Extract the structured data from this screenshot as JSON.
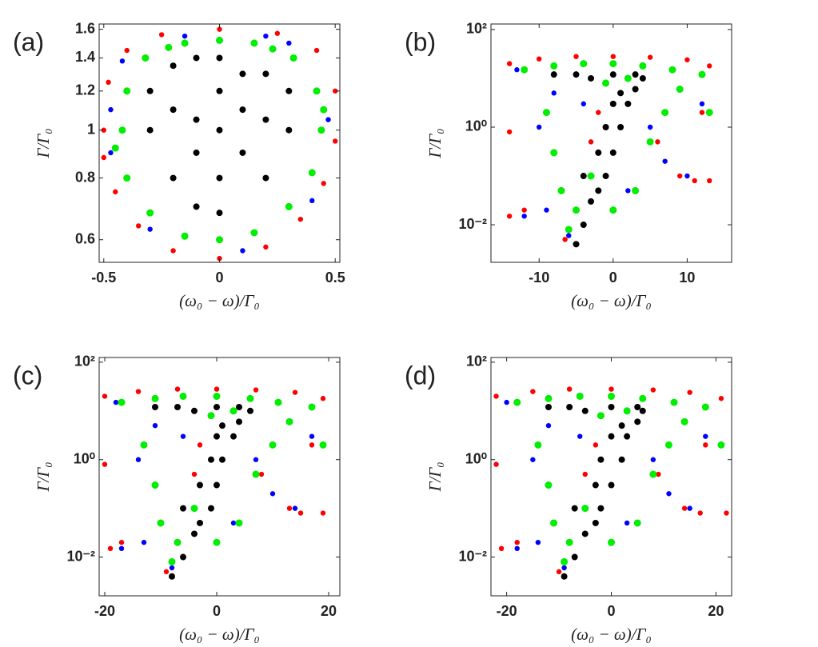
{
  "chart_data": [
    {
      "type": "scatter",
      "label": "(a)",
      "xlabel": "(ω₀ − ω)/Γ₀",
      "ylabel": "Γ/Γ₀",
      "ylog": true,
      "xlim": [
        -0.52,
        0.52
      ],
      "ylim": [
        0.54,
        1.64
      ],
      "xticks": [
        -0.5,
        0,
        0.5
      ],
      "yticks": [
        0.6,
        0.8,
        1,
        1.2,
        1.4,
        1.6
      ],
      "series": [
        {
          "color": "#ff0000",
          "x": [
            -0.5,
            -0.48,
            -0.4,
            -0.25,
            0,
            0.25,
            0.42,
            0.5,
            0.5,
            0.45,
            0.35,
            0.2,
            0,
            -0.2,
            -0.35,
            -0.45,
            -0.5
          ],
          "values": [
            1.0,
            1.25,
            1.45,
            1.56,
            1.6,
            1.57,
            1.45,
            1.2,
            0.95,
            0.78,
            0.66,
            0.58,
            0.55,
            0.57,
            0.64,
            0.75,
            0.88
          ]
        },
        {
          "color": "#0000ff",
          "x": [
            -0.47,
            -0.42,
            0.3,
            0.47,
            0.4,
            0.1,
            -0.3,
            -0.47,
            0.2,
            -0.15
          ],
          "values": [
            1.1,
            1.38,
            1.5,
            1.05,
            0.72,
            0.57,
            0.63,
            0.9,
            1.55,
            1.55
          ]
        },
        {
          "color": "#00ee00",
          "x": [
            -0.42,
            -0.4,
            -0.32,
            -0.15,
            0,
            0.15,
            0.32,
            0.42,
            0.44,
            0.4,
            0.3,
            0.15,
            0,
            -0.15,
            -0.3,
            -0.4,
            -0.45,
            0.45,
            -0.22,
            0.23
          ],
          "values": [
            1.0,
            1.2,
            1.4,
            1.5,
            1.52,
            1.5,
            1.4,
            1.2,
            1.0,
            0.82,
            0.7,
            0.62,
            0.6,
            0.61,
            0.68,
            0.8,
            0.92,
            1.1,
            1.47,
            1.46
          ]
        },
        {
          "color": "#000000",
          "x": [
            -0.3,
            -0.3,
            -0.2,
            -0.2,
            -0.1,
            -0.1,
            0,
            0,
            0,
            0,
            0,
            0.1,
            0.1,
            0.2,
            0.2,
            0.3,
            0.3,
            -0.1,
            -0.2,
            0.2,
            0.1,
            -0.1
          ],
          "values": [
            1.0,
            1.2,
            1.35,
            0.8,
            1.4,
            0.7,
            1.0,
            1.2,
            0.8,
            1.4,
            0.68,
            1.1,
            0.9,
            1.3,
            0.8,
            1.0,
            1.2,
            1.05,
            1.1,
            1.05,
            1.3,
            0.9
          ]
        }
      ]
    },
    {
      "type": "scatter",
      "label": "(b)",
      "xlabel": "(ω₀ − ω)/Γ₀",
      "ylabel": "Γ/Γ₀",
      "ylog": true,
      "xlim": [
        -16.5,
        16
      ],
      "ylim": [
        0.0017,
        130
      ],
      "xticks": [
        -10,
        0,
        10
      ],
      "yticks": [
        {
          "value": 0.01,
          "label": "10⁻²"
        },
        {
          "value": 1,
          "label": "10⁰"
        },
        {
          "value": 100,
          "label": "10²"
        }
      ],
      "series": [
        {
          "color": "#ff0000",
          "x": [
            -14,
            -10,
            -5,
            0,
            5,
            10,
            13,
            12,
            9,
            11,
            13,
            -14,
            -12,
            -14,
            -8,
            -2,
            -6.5,
            6,
            -3
          ],
          "values": [
            20,
            25,
            28,
            28,
            27,
            24,
            18,
            2,
            0.1,
            0.08,
            0.08,
            0.8,
            0.02,
            0.015,
            0.3,
            2,
            0.005,
            0.5,
            0.5
          ]
        },
        {
          "color": "#0000ff",
          "x": [
            -13,
            -10,
            -12,
            -9,
            -4,
            -8,
            5,
            7,
            10,
            -6,
            2,
            12
          ],
          "values": [
            15,
            1,
            0.015,
            0.02,
            3,
            5,
            1,
            0.2,
            0.1,
            0.006,
            0.05,
            3
          ]
        },
        {
          "color": "#00ee00",
          "x": [
            -12,
            -8,
            -4,
            0,
            4,
            8,
            12,
            -9,
            -8,
            -7,
            -6,
            -5,
            -3,
            0,
            3,
            5,
            7,
            9,
            -1,
            2,
            13
          ],
          "values": [
            15,
            18,
            20,
            20,
            18,
            15,
            12,
            2,
            0.3,
            0.05,
            0.008,
            0.02,
            0.1,
            0.02,
            0.05,
            0.5,
            2,
            6,
            8,
            10,
            2
          ]
        },
        {
          "color": "#000000",
          "x": [
            -5,
            -4,
            -3,
            -2,
            -1,
            0,
            1,
            2,
            3,
            4,
            -2,
            -1,
            0,
            1,
            -3,
            0,
            3,
            -5,
            -8,
            -4
          ],
          "values": [
            0.004,
            0.01,
            0.03,
            0.05,
            0.1,
            0.3,
            1,
            3,
            6,
            10,
            0.3,
            1,
            3,
            5,
            10,
            12,
            12,
            12,
            12,
            0.1
          ]
        }
      ]
    },
    {
      "type": "scatter",
      "label": "(c)",
      "xlabel": "(ω₀ − ω)/Γ₀",
      "ylabel": "Γ/Γ₀",
      "ylog": true,
      "xlim": [
        -21,
        22
      ],
      "ylim": [
        0.0016,
        125
      ],
      "xticks": [
        -20,
        0,
        20
      ],
      "yticks": [
        {
          "value": 0.01,
          "label": "10⁻²"
        },
        {
          "value": 1,
          "label": "10⁰"
        },
        {
          "value": 100,
          "label": "10²"
        }
      ],
      "series": [
        {
          "color": "#ff0000",
          "x": [
            -20,
            -14,
            -7,
            0,
            7,
            14,
            19,
            17,
            13,
            15,
            19,
            -20,
            -17,
            -19,
            -11,
            -3,
            -9,
            8,
            -4
          ],
          "values": [
            20,
            25,
            28,
            28,
            27,
            24,
            18,
            2,
            0.1,
            0.08,
            0.08,
            0.8,
            0.02,
            0.015,
            0.3,
            2,
            0.005,
            0.5,
            0.5
          ]
        },
        {
          "color": "#0000ff",
          "x": [
            -18,
            -14,
            -17,
            -13,
            -6,
            -11,
            7,
            10,
            14,
            -8,
            3,
            17
          ],
          "values": [
            15,
            1,
            0.015,
            0.02,
            3,
            5,
            1,
            0.2,
            0.1,
            0.006,
            0.05,
            3
          ]
        },
        {
          "color": "#00ee00",
          "x": [
            -17,
            -11,
            -6,
            0,
            6,
            11,
            17,
            -13,
            -11,
            -10,
            -8,
            -7,
            -4,
            0,
            4,
            7,
            10,
            13,
            -1,
            3,
            19
          ],
          "values": [
            15,
            18,
            20,
            20,
            18,
            15,
            12,
            2,
            0.3,
            0.05,
            0.008,
            0.02,
            0.1,
            0.02,
            0.05,
            0.5,
            2,
            6,
            8,
            10,
            2
          ]
        },
        {
          "color": "#000000",
          "x": [
            -8,
            -6,
            -4,
            -3,
            -1,
            0,
            1,
            3,
            4,
            6,
            -3,
            -1,
            0,
            1,
            -4,
            0,
            4,
            -7,
            -11,
            -6
          ],
          "values": [
            0.004,
            0.01,
            0.03,
            0.05,
            0.1,
            0.3,
            1,
            3,
            6,
            10,
            0.3,
            1,
            3,
            5,
            10,
            12,
            12,
            12,
            12,
            0.1
          ]
        }
      ]
    },
    {
      "type": "scatter",
      "label": "(d)",
      "xlabel": "(ω₀ − ω)/Γ₀",
      "ylabel": "Γ/Γ₀",
      "ylog": true,
      "xlim": [
        -23,
        23
      ],
      "ylim": [
        0.0016,
        125
      ],
      "xticks": [
        -20,
        0,
        20
      ],
      "yticks": [
        {
          "value": 0.01,
          "label": "10⁻²"
        },
        {
          "value": 1,
          "label": "10⁰"
        },
        {
          "value": 100,
          "label": "10²"
        }
      ],
      "series": [
        {
          "color": "#ff0000",
          "x": [
            -22,
            -15,
            -8,
            0,
            8,
            15,
            21,
            18,
            14,
            17,
            22,
            -22,
            -18,
            -21,
            -12,
            -3,
            -10,
            9,
            -5
          ],
          "values": [
            20,
            25,
            28,
            28,
            27,
            24,
            18,
            2,
            0.1,
            0.08,
            0.08,
            0.8,
            0.02,
            0.015,
            0.3,
            2,
            0.005,
            0.5,
            0.5
          ]
        },
        {
          "color": "#0000ff",
          "x": [
            -20,
            -15,
            -18,
            -14,
            -6,
            -12,
            8,
            11,
            15,
            -9,
            3,
            18
          ],
          "values": [
            15,
            1,
            0.015,
            0.02,
            3,
            5,
            1,
            0.2,
            0.1,
            0.006,
            0.05,
            3
          ]
        },
        {
          "color": "#00ee00",
          "x": [
            -18,
            -12,
            -6,
            0,
            6,
            12,
            18,
            -14,
            -12,
            -11,
            -9,
            -8,
            -5,
            0,
            5,
            8,
            11,
            14,
            -2,
            3,
            21
          ],
          "values": [
            15,
            18,
            20,
            20,
            18,
            15,
            12,
            2,
            0.3,
            0.05,
            0.008,
            0.02,
            0.1,
            0.02,
            0.05,
            0.5,
            2,
            6,
            8,
            10,
            2
          ]
        },
        {
          "color": "#000000",
          "x": [
            -9,
            -7,
            -5,
            -3,
            -2,
            0,
            2,
            3,
            5,
            6,
            -3,
            -2,
            0,
            2,
            -5,
            0,
            5,
            -8,
            -12,
            -7
          ],
          "values": [
            0.004,
            0.01,
            0.03,
            0.05,
            0.1,
            0.3,
            1,
            3,
            6,
            10,
            0.3,
            1,
            3,
            5,
            10,
            12,
            12,
            12,
            12,
            0.1
          ]
        }
      ]
    }
  ]
}
